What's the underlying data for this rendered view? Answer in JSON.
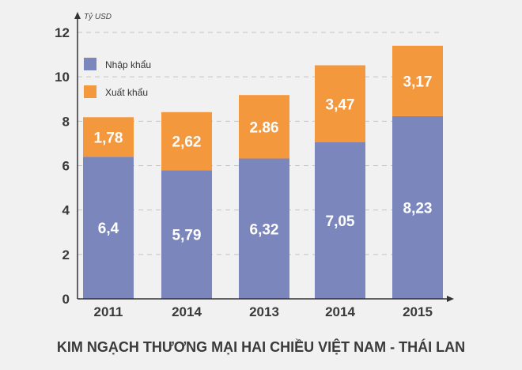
{
  "chart_data": {
    "type": "bar",
    "stacked": true,
    "title": "KIM NGẠCH THƯƠNG MẠI HAI CHIỀU VIỆT NAM - THÁI LAN",
    "ylabel": "Tỷ USD",
    "xlabel": "",
    "ylim": [
      0,
      12
    ],
    "yticks": [
      0,
      2,
      4,
      6,
      8,
      10,
      12
    ],
    "grid": true,
    "legend_position": "top-left",
    "categories": [
      "2011",
      "2014",
      "2013",
      "2014",
      "2015"
    ],
    "series": [
      {
        "name": "Nhập khẩu",
        "color": "#7b86bd",
        "values": [
          6.4,
          5.79,
          6.32,
          7.05,
          8.23
        ],
        "labels": [
          "6,4",
          "5,79",
          "6,32",
          "7,05",
          "8,23"
        ]
      },
      {
        "name": "Xuất khẩu",
        "color": "#f4983e",
        "values": [
          1.78,
          2.62,
          2.86,
          3.47,
          3.17
        ],
        "labels": [
          "1,78",
          "2,62",
          "2.86",
          "3,47",
          "3,17"
        ]
      }
    ]
  }
}
